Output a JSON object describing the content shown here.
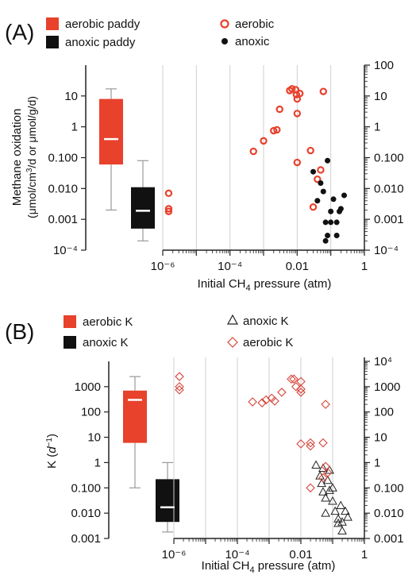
{
  "colors": {
    "aerobic": "#e8412c",
    "anoxic": "#111111",
    "whisker": "#9a9a9a",
    "grid": "#cfcfcf",
    "axis": "#222222"
  },
  "chart_data": [
    {
      "panel": "(A)",
      "type": "scatter",
      "xlabel_pre": "Initial CH",
      "xlabel_sub": "4",
      "xlabel_post": " pressure (atm)",
      "ylabel_line1": "Methane oxidation",
      "ylabel_line2_pre": "(μmol/cm",
      "ylabel_line2_sup": "3",
      "ylabel_line2_post": "/d or μmol/g/d)",
      "x_scale": "log",
      "xlim": [
        1e-06,
        1
      ],
      "y_scale": "log",
      "ylim": [
        0.0001,
        100
      ],
      "x_ticks": [
        "10⁻⁶",
        "10⁻⁴",
        "0.01",
        "1"
      ],
      "y_ticks_left": [
        "10",
        "1",
        "0.100",
        "0.010",
        "0.001",
        "10⁻⁴"
      ],
      "y_ticks_right": [
        "100",
        "10",
        "1",
        "0.100",
        "0.010",
        "0.001",
        "10⁻⁴"
      ],
      "grid": "vertical gridlines at decades",
      "legend": {
        "box_aerobic": "aerobic paddy",
        "box_anoxic": "anoxic paddy",
        "pts_aerobic": "aerobic",
        "pts_anoxic": "anoxic"
      },
      "boxplots": [
        {
          "name": "aerobic paddy",
          "min": 0.002,
          "q1": 0.06,
          "median": 0.4,
          "q3": 8,
          "max": 17
        },
        {
          "name": "anoxic paddy",
          "min": 0.0002,
          "q1": 0.0005,
          "median": 0.0019,
          "q3": 0.011,
          "max": 0.08
        }
      ],
      "series": [
        {
          "name": "aerobic",
          "marker": "open-circle",
          "points": [
            [
              1.5e-06,
              0.007
            ],
            [
              1.5e-06,
              0.0022
            ],
            [
              1.5e-06,
              0.0018
            ],
            [
              0.0005,
              0.16
            ],
            [
              0.001,
              0.35
            ],
            [
              0.002,
              0.75
            ],
            [
              0.0025,
              0.8
            ],
            [
              0.003,
              3.7
            ],
            [
              0.006,
              15
            ],
            [
              0.007,
              17
            ],
            [
              0.009,
              16
            ],
            [
              0.0095,
              11
            ],
            [
              0.01,
              8
            ],
            [
              0.01,
              2.7
            ],
            [
              0.01,
              0.07
            ],
            [
              0.012,
              12
            ],
            [
              0.025,
              0.17
            ],
            [
              0.03,
              0.0025
            ],
            [
              0.04,
              0.02
            ],
            [
              0.05,
              0.04
            ],
            [
              0.06,
              14
            ]
          ]
        },
        {
          "name": "anoxic",
          "marker": "filled-circle",
          "points": [
            [
              0.03,
              0.035
            ],
            [
              0.04,
              0.004
            ],
            [
              0.05,
              0.015
            ],
            [
              0.06,
              0.008
            ],
            [
              0.07,
              0.0008
            ],
            [
              0.08,
              0.08
            ],
            [
              0.1,
              0.0018
            ],
            [
              0.1,
              0.0008
            ],
            [
              0.12,
              0.0045
            ],
            [
              0.15,
              0.0003
            ],
            [
              0.15,
              0.0008
            ],
            [
              0.18,
              0.0018
            ],
            [
              0.2,
              0.0022
            ],
            [
              0.25,
              0.006
            ],
            [
              0.08,
              0.0003
            ],
            [
              0.07,
              0.0002
            ]
          ]
        }
      ]
    },
    {
      "panel": "(B)",
      "type": "scatter",
      "xlabel_pre": "Initial CH",
      "xlabel_sub": "4",
      "xlabel_post": " pressure (atm)",
      "ylabel_pre": "K (",
      "ylabel_italic": "d",
      "ylabel_sup": "−1",
      "ylabel_post": ")",
      "x_scale": "log",
      "xlim": [
        1e-06,
        1
      ],
      "y_scale": "log",
      "ylim": [
        0.001,
        10000
      ],
      "x_ticks": [
        "10⁻⁶",
        "10⁻⁴",
        "0.01",
        "1"
      ],
      "y_ticks_left": [
        "1000",
        "100",
        "10",
        "1",
        "0.100",
        "0.010",
        "0.001"
      ],
      "y_ticks_right": [
        "10⁴",
        "1000",
        "100",
        "10",
        "1",
        "0.100",
        "0.010",
        "0.001"
      ],
      "grid": "vertical gridlines at decades",
      "legend": {
        "box_aerobic": "aerobic K",
        "box_anoxic": "anoxic K",
        "pts_anoxic": "anoxic K",
        "pts_aerobic": "aerobic K"
      },
      "boxplots": [
        {
          "name": "aerobic K",
          "min": 0.1,
          "q1": 6,
          "median": 300,
          "q3": 700,
          "max": 2500
        },
        {
          "name": "anoxic K",
          "min": 0.0018,
          "q1": 0.0045,
          "median": 0.017,
          "q3": 0.22,
          "max": 1
        }
      ],
      "series": [
        {
          "name": "anoxic K",
          "marker": "open-triangle",
          "points": [
            [
              0.03,
              0.8
            ],
            [
              0.05,
              0.6
            ],
            [
              0.04,
              0.3
            ],
            [
              0.045,
              0.15
            ],
            [
              0.05,
              0.07
            ],
            [
              0.06,
              0.04
            ],
            [
              0.07,
              0.2
            ],
            [
              0.08,
              0.5
            ],
            [
              0.1,
              0.03
            ],
            [
              0.12,
              0.012
            ],
            [
              0.15,
              0.006
            ],
            [
              0.18,
              0.02
            ],
            [
              0.2,
              0.0045
            ],
            [
              0.25,
              0.012
            ],
            [
              0.3,
              0.007
            ],
            [
              0.2,
              0.002
            ],
            [
              0.15,
              0.004
            ],
            [
              0.08,
              0.08
            ],
            [
              0.06,
              0.01
            ],
            [
              0.1,
              0.1
            ]
          ]
        },
        {
          "name": "aerobic K",
          "marker": "open-diamond",
          "points": [
            [
              1.5e-06,
              2500
            ],
            [
              1.5e-06,
              1000
            ],
            [
              1.5e-06,
              750
            ],
            [
              0.0003,
              250
            ],
            [
              0.0006,
              230
            ],
            [
              0.0008,
              300
            ],
            [
              0.0012,
              350
            ],
            [
              0.0015,
              270
            ],
            [
              0.0025,
              600
            ],
            [
              0.005,
              2000
            ],
            [
              0.006,
              2000
            ],
            [
              0.007,
              1000
            ],
            [
              0.01,
              1600
            ],
            [
              0.01,
              800
            ],
            [
              0.01,
              600
            ],
            [
              0.01,
              5.5
            ],
            [
              0.02,
              6
            ],
            [
              0.02,
              4.5
            ],
            [
              0.02,
              0.1
            ],
            [
              0.05,
              6
            ],
            [
              0.06,
              0.7
            ],
            [
              0.07,
              0.4
            ],
            [
              0.06,
              200
            ],
            [
              0.05,
              0.25
            ]
          ]
        }
      ]
    }
  ]
}
